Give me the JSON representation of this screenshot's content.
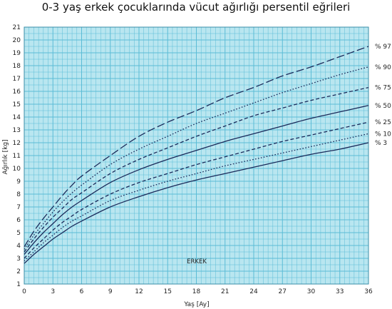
{
  "chart_data": {
    "type": "line",
    "title": "0-3 yaş erkek çocuklarında vücut ağırlığı persentil eğrileri",
    "xlabel": "Yaş [Ay]",
    "ylabel": "Ağırlık [kg]",
    "inner_label": "ERKEK",
    "xlim": [
      0,
      36
    ],
    "ylim": [
      1,
      21
    ],
    "xticks": [
      0,
      3,
      6,
      9,
      12,
      15,
      18,
      21,
      24,
      27,
      30,
      33,
      36
    ],
    "yticks": [
      1,
      2,
      3,
      4,
      5,
      6,
      7,
      8,
      9,
      10,
      11,
      12,
      13,
      14,
      15,
      16,
      17,
      18,
      19,
      20,
      21
    ],
    "grid": true,
    "background_color": "#b9e6f0",
    "grid_color": "#5bbcd6",
    "line_color": "#1a2a5a",
    "x": [
      0,
      1,
      2,
      3,
      4,
      5,
      6,
      9,
      12,
      15,
      18,
      21,
      24,
      27,
      30,
      33,
      36
    ],
    "series": [
      {
        "name": "% 3",
        "style": "solid",
        "values": [
          2.6,
          3.3,
          3.9,
          4.5,
          5.0,
          5.5,
          5.9,
          7.0,
          7.8,
          8.5,
          9.1,
          9.6,
          10.1,
          10.6,
          11.1,
          11.5,
          12.0
        ]
      },
      {
        "name": "% 10",
        "style": "dotted",
        "values": [
          2.8,
          3.5,
          4.2,
          4.8,
          5.4,
          5.9,
          6.3,
          7.5,
          8.3,
          9.0,
          9.6,
          10.2,
          10.7,
          11.2,
          11.7,
          12.2,
          12.7
        ]
      },
      {
        "name": "% 25",
        "style": "dashed",
        "values": [
          3.0,
          3.8,
          4.5,
          5.2,
          5.8,
          6.3,
          6.8,
          8.0,
          8.9,
          9.6,
          10.3,
          10.9,
          11.5,
          12.1,
          12.6,
          13.1,
          13.6
        ]
      },
      {
        "name": "% 50",
        "style": "solid",
        "values": [
          3.3,
          4.2,
          5.0,
          5.7,
          6.4,
          7.0,
          7.5,
          8.9,
          9.9,
          10.7,
          11.4,
          12.1,
          12.7,
          13.3,
          13.9,
          14.4,
          14.9
        ]
      },
      {
        "name": "% 75",
        "style": "dashed",
        "values": [
          3.5,
          4.5,
          5.4,
          6.2,
          6.9,
          7.6,
          8.1,
          9.6,
          10.7,
          11.6,
          12.5,
          13.3,
          14.1,
          14.7,
          15.3,
          15.8,
          16.3
        ]
      },
      {
        "name": "% 90",
        "style": "dotted",
        "values": [
          3.7,
          4.8,
          5.7,
          6.6,
          7.4,
          8.1,
          8.7,
          10.3,
          11.5,
          12.5,
          13.5,
          14.3,
          15.1,
          15.9,
          16.6,
          17.3,
          17.9
        ]
      },
      {
        "name": "% 97",
        "style": "longdash",
        "values": [
          3.9,
          5.1,
          6.1,
          7.0,
          7.9,
          8.7,
          9.4,
          11.0,
          12.5,
          13.6,
          14.5,
          15.5,
          16.3,
          17.2,
          17.9,
          18.7,
          19.5
        ]
      }
    ]
  }
}
